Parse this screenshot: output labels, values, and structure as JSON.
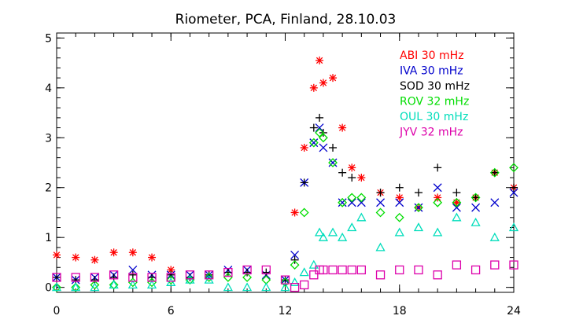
{
  "chart_data": {
    "type": "scatter",
    "title": "Riometer, PCA,  Finland, 28.10.03",
    "xlabel": "",
    "ylabel": "",
    "xlim": [
      0,
      24
    ],
    "ylim": [
      -0.1,
      5.1
    ],
    "xticks": [
      0,
      6,
      12,
      18,
      24
    ],
    "yticks": [
      0,
      1,
      2,
      3,
      4,
      5
    ],
    "legend_position": "top-right",
    "series": [
      {
        "name": "ABI 30 mHz",
        "color": "#ff0000",
        "marker": "asterisk",
        "points": [
          [
            0,
            0.65
          ],
          [
            1,
            0.6
          ],
          [
            2,
            0.55
          ],
          [
            3,
            0.7
          ],
          [
            4,
            0.7
          ],
          [
            5,
            0.6
          ],
          [
            6,
            0.35
          ],
          [
            12.5,
            1.5
          ],
          [
            13,
            2.8
          ],
          [
            13.5,
            4.0
          ],
          [
            13.8,
            4.55
          ],
          [
            14,
            4.1
          ],
          [
            14.5,
            4.2
          ],
          [
            15,
            3.2
          ],
          [
            15.5,
            2.4
          ],
          [
            16,
            2.2
          ],
          [
            17,
            1.9
          ],
          [
            18,
            1.8
          ],
          [
            19,
            1.6
          ],
          [
            20,
            1.8
          ],
          [
            21,
            1.7
          ],
          [
            22,
            1.8
          ],
          [
            23,
            2.3
          ],
          [
            24,
            2.0
          ]
        ]
      },
      {
        "name": "IVA 30 mHz",
        "color": "#0000cc",
        "marker": "x",
        "points": [
          [
            0,
            0.2
          ],
          [
            1,
            0.15
          ],
          [
            2,
            0.2
          ],
          [
            3,
            0.25
          ],
          [
            4,
            0.35
          ],
          [
            5,
            0.25
          ],
          [
            6,
            0.25
          ],
          [
            7,
            0.25
          ],
          [
            8,
            0.25
          ],
          [
            9,
            0.35
          ],
          [
            10,
            0.35
          ],
          [
            11,
            0.25
          ],
          [
            12,
            0.15
          ],
          [
            12.5,
            0.65
          ],
          [
            13,
            2.1
          ],
          [
            13.5,
            2.9
          ],
          [
            13.8,
            3.2
          ],
          [
            14,
            2.8
          ],
          [
            14.5,
            2.5
          ],
          [
            15,
            1.7
          ],
          [
            15.5,
            1.7
          ],
          [
            16,
            1.7
          ],
          [
            17,
            1.7
          ],
          [
            18,
            1.7
          ],
          [
            19,
            1.6
          ],
          [
            20,
            2.0
          ],
          [
            21,
            1.6
          ],
          [
            22,
            1.6
          ],
          [
            23,
            1.7
          ],
          [
            24,
            1.9
          ]
        ]
      },
      {
        "name": "SOD 30 mHz",
        "color": "#000000",
        "marker": "plus",
        "points": [
          [
            0,
            0.2
          ],
          [
            1,
            0.15
          ],
          [
            2,
            0.15
          ],
          [
            3,
            0.2
          ],
          [
            4,
            0.25
          ],
          [
            5,
            0.2
          ],
          [
            6,
            0.25
          ],
          [
            7,
            0.2
          ],
          [
            8,
            0.25
          ],
          [
            9,
            0.3
          ],
          [
            10,
            0.3
          ],
          [
            11,
            0.3
          ],
          [
            12,
            0.15
          ],
          [
            12.5,
            0.55
          ],
          [
            13,
            2.1
          ],
          [
            13.5,
            3.2
          ],
          [
            13.8,
            3.4
          ],
          [
            14,
            3.1
          ],
          [
            14.5,
            2.8
          ],
          [
            15,
            2.3
          ],
          [
            15.5,
            2.2
          ],
          [
            17,
            1.9
          ],
          [
            18,
            2.0
          ],
          [
            19,
            1.9
          ],
          [
            20,
            2.4
          ],
          [
            21,
            1.9
          ],
          [
            22,
            1.8
          ],
          [
            23,
            2.3
          ],
          [
            24,
            2.0
          ]
        ]
      },
      {
        "name": "ROV 32 mHz",
        "color": "#00dd00",
        "marker": "diamond",
        "points": [
          [
            0,
            0.0
          ],
          [
            1,
            0.0
          ],
          [
            2,
            0.05
          ],
          [
            3,
            0.05
          ],
          [
            4,
            0.1
          ],
          [
            5,
            0.1
          ],
          [
            6,
            0.15
          ],
          [
            7,
            0.15
          ],
          [
            8,
            0.2
          ],
          [
            9,
            0.2
          ],
          [
            10,
            0.2
          ],
          [
            11,
            0.15
          ],
          [
            12,
            0.1
          ],
          [
            12.5,
            0.45
          ],
          [
            13,
            1.5
          ],
          [
            13.5,
            2.9
          ],
          [
            13.8,
            3.1
          ],
          [
            14,
            3.0
          ],
          [
            14.5,
            2.5
          ],
          [
            15,
            1.7
          ],
          [
            15.5,
            1.8
          ],
          [
            16,
            1.8
          ],
          [
            17,
            1.5
          ],
          [
            18,
            1.4
          ],
          [
            19,
            1.6
          ],
          [
            20,
            1.7
          ],
          [
            21,
            1.7
          ],
          [
            22,
            1.8
          ],
          [
            23,
            2.3
          ],
          [
            24,
            2.4
          ]
        ]
      },
      {
        "name": "OUL 30 mHz",
        "color": "#00ddbb",
        "marker": "triangle",
        "points": [
          [
            0,
            0.0
          ],
          [
            1,
            0.0
          ],
          [
            2,
            0.0
          ],
          [
            3,
            0.05
          ],
          [
            4,
            0.05
          ],
          [
            5,
            0.05
          ],
          [
            6,
            0.1
          ],
          [
            7,
            0.15
          ],
          [
            8,
            0.15
          ],
          [
            9,
            0.0
          ],
          [
            10,
            0.0
          ],
          [
            11,
            0.0
          ],
          [
            12,
            0.0
          ],
          [
            12.5,
            0.1
          ],
          [
            13,
            0.3
          ],
          [
            13.5,
            0.45
          ],
          [
            13.8,
            1.1
          ],
          [
            14,
            1.0
          ],
          [
            14.5,
            1.1
          ],
          [
            15,
            1.0
          ],
          [
            15.5,
            1.2
          ],
          [
            16,
            1.4
          ],
          [
            17,
            0.8
          ],
          [
            18,
            1.1
          ],
          [
            19,
            1.2
          ],
          [
            20,
            1.1
          ],
          [
            21,
            1.4
          ],
          [
            22,
            1.3
          ],
          [
            23,
            1.0
          ],
          [
            24,
            1.2
          ]
        ]
      },
      {
        "name": "JYV 32 mHz",
        "color": "#dd00aa",
        "marker": "square",
        "points": [
          [
            0,
            0.2
          ],
          [
            1,
            0.2
          ],
          [
            2,
            0.2
          ],
          [
            3,
            0.25
          ],
          [
            4,
            0.2
          ],
          [
            5,
            0.2
          ],
          [
            6,
            0.2
          ],
          [
            7,
            0.25
          ],
          [
            8,
            0.25
          ],
          [
            9,
            0.3
          ],
          [
            10,
            0.35
          ],
          [
            11,
            0.35
          ],
          [
            12,
            0.15
          ],
          [
            12.5,
            0.0
          ],
          [
            13,
            0.05
          ],
          [
            13.5,
            0.25
          ],
          [
            13.8,
            0.35
          ],
          [
            14,
            0.35
          ],
          [
            14.5,
            0.35
          ],
          [
            15,
            0.35
          ],
          [
            15.5,
            0.35
          ],
          [
            16,
            0.35
          ],
          [
            17,
            0.25
          ],
          [
            18,
            0.35
          ],
          [
            19,
            0.35
          ],
          [
            20,
            0.25
          ],
          [
            21,
            0.45
          ],
          [
            22,
            0.35
          ],
          [
            23,
            0.45
          ],
          [
            24,
            0.45
          ]
        ]
      }
    ]
  }
}
